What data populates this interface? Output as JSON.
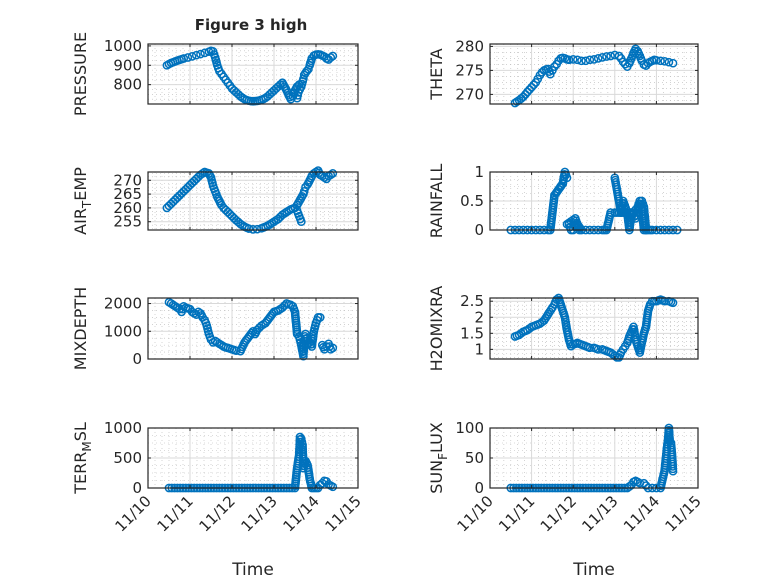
{
  "chart_data": {
    "type": "scatter",
    "title": "Figure 3 high",
    "marker": "open-circle",
    "color": "#0072BD",
    "x_tick_labels": [
      "11/10",
      "11/11",
      "11/12",
      "11/13",
      "11/14",
      "11/15"
    ],
    "x_range_days": [
      0,
      5
    ],
    "xlabel": "Time",
    "subplots": [
      {
        "id": "pressure",
        "ylabel": "PRESSURE",
        "ylabel_sub": "",
        "ylim": [
          700,
          1010
        ],
        "yticks": [
          800,
          900,
          1000
        ],
        "ytick_labels": [
          "800",
          "900",
          "1000"
        ],
        "minor_grid": true,
        "show_x_ticklabels": false,
        "x": [
          0.45,
          0.55,
          0.65,
          0.75,
          0.85,
          0.95,
          1.05,
          1.15,
          1.25,
          1.35,
          1.45,
          1.5,
          1.55,
          1.6,
          1.65,
          1.7,
          1.75,
          1.8,
          1.85,
          1.9,
          1.95,
          2.0,
          2.05,
          2.1,
          2.15,
          2.2,
          2.25,
          2.3,
          2.35,
          2.4,
          2.45,
          2.5,
          2.55,
          2.6,
          2.65,
          2.7,
          2.75,
          2.8,
          2.85,
          2.9,
          2.95,
          3.0,
          3.05,
          3.1,
          3.15,
          3.2,
          3.25,
          3.3,
          3.35,
          3.4,
          3.45,
          3.5,
          3.55,
          3.6,
          3.55,
          3.58,
          3.65,
          3.7,
          3.72,
          3.75,
          3.78,
          3.82,
          3.85,
          3.9,
          3.95,
          4.0,
          4.05,
          4.1,
          4.15,
          4.2,
          4.25,
          4.3,
          4.35,
          4.4
        ],
        "y": [
          900,
          912,
          920,
          928,
          935,
          940,
          946,
          952,
          958,
          964,
          970,
          975,
          972,
          940,
          900,
          870,
          855,
          840,
          825,
          810,
          795,
          780,
          770,
          760,
          750,
          740,
          732,
          725,
          720,
          717,
          715,
          714,
          715,
          716,
          718,
          722,
          726,
          732,
          740,
          750,
          760,
          770,
          780,
          790,
          800,
          810,
          790,
          770,
          745,
          725,
          740,
          770,
          790,
          800,
          730,
          760,
          790,
          830,
          850,
          860,
          870,
          880,
          900,
          935,
          950,
          955,
          957,
          955,
          950,
          945,
          935,
          930,
          940,
          948
        ]
      },
      {
        "id": "theta",
        "ylabel": "THETA",
        "ylabel_sub": "",
        "ylim": [
          268,
          280.5
        ],
        "yticks": [
          270,
          275,
          280
        ],
        "ytick_labels": [
          "270",
          "275",
          "280"
        ],
        "minor_grid": true,
        "show_x_ticklabels": false,
        "x": [
          0.6,
          0.7,
          0.8,
          0.9,
          1.0,
          1.1,
          1.15,
          1.2,
          1.25,
          1.3,
          1.35,
          1.4,
          1.45,
          1.5,
          1.55,
          1.6,
          1.65,
          1.7,
          1.75,
          1.8,
          1.85,
          1.9,
          2.0,
          2.1,
          2.2,
          2.3,
          2.4,
          2.5,
          2.6,
          2.7,
          2.8,
          2.9,
          3.0,
          3.1,
          3.15,
          3.2,
          3.25,
          3.3,
          3.35,
          3.4,
          3.45,
          3.5,
          3.55,
          3.6,
          3.65,
          3.7,
          3.75,
          3.8,
          3.85,
          3.9,
          3.95,
          4.0,
          4.1,
          4.2,
          4.3,
          4.4
        ],
        "y": [
          268.2,
          268.8,
          269.5,
          270.5,
          271.5,
          272.5,
          273.2,
          274,
          274.6,
          275,
          275.2,
          275.3,
          274.2,
          275,
          275.8,
          276.3,
          277,
          277.5,
          277.6,
          277.5,
          277.3,
          277.2,
          277.3,
          277.2,
          277,
          277,
          277.2,
          277.3,
          277.5,
          277.7,
          277.9,
          278,
          278.2,
          278,
          277.5,
          276.8,
          276.3,
          275.8,
          276.5,
          277.5,
          278.6,
          279.5,
          279,
          278,
          277,
          276.2,
          276,
          276.5,
          276.8,
          277,
          277.2,
          277.1,
          277,
          276.9,
          276.7,
          276.5
        ]
      },
      {
        "id": "air_temp",
        "ylabel": "AIR",
        "ylabel_sub": "T",
        "ylabel_after": "EMP",
        "ylim": [
          252,
          273
        ],
        "yticks": [
          255,
          260,
          265,
          270
        ],
        "ytick_labels": [
          "255",
          "260",
          "265",
          "270"
        ],
        "minor_grid": true,
        "show_x_ticklabels": false,
        "x": [
          0.45,
          0.55,
          0.65,
          0.75,
          0.85,
          0.95,
          1.05,
          1.15,
          1.25,
          1.35,
          1.45,
          1.5,
          1.55,
          1.6,
          1.65,
          1.7,
          1.75,
          1.8,
          1.9,
          2.0,
          2.1,
          2.2,
          2.3,
          2.4,
          2.5,
          2.6,
          2.7,
          2.8,
          2.9,
          3.0,
          3.1,
          3.2,
          3.3,
          3.4,
          3.5,
          3.55,
          3.6,
          3.65,
          3.55,
          3.7,
          3.72,
          3.75,
          3.8,
          3.85,
          3.9,
          3.95,
          4.0,
          4.05,
          4.1,
          4.15,
          4.2,
          4.25,
          4.3,
          4.35,
          4.4
        ],
        "y": [
          260,
          261.5,
          263,
          264.5,
          266,
          267.5,
          269,
          270.5,
          272,
          273,
          272.5,
          271,
          268,
          266,
          264,
          262.5,
          261,
          260,
          258.5,
          257,
          255.5,
          254.2,
          253.2,
          252.5,
          252.2,
          252.3,
          252.6,
          253.2,
          254,
          255,
          256,
          257.5,
          258.5,
          259.5,
          260,
          259,
          257,
          255,
          261,
          265,
          266,
          267.5,
          268.5,
          270,
          271.5,
          272.5,
          273,
          273.5,
          272,
          271.5,
          271,
          270.5,
          271.5,
          272,
          272.5
        ]
      },
      {
        "id": "rainfall",
        "ylabel": "RAINFALL",
        "ylabel_sub": "",
        "ylim": [
          0,
          1
        ],
        "yticks": [
          0,
          0.5,
          1
        ],
        "ytick_labels": [
          "0",
          "0.5",
          "1"
        ],
        "minor_grid": true,
        "show_x_ticklabels": false,
        "x": [
          0.5,
          0.6,
          0.7,
          0.8,
          0.9,
          1.0,
          1.1,
          1.2,
          1.3,
          1.4,
          1.45,
          1.5,
          1.55,
          1.6,
          1.65,
          1.7,
          1.75,
          1.8,
          1.85,
          1.9,
          1.95,
          2.0,
          2.05,
          2.1,
          2.2,
          2.3,
          2.4,
          2.5,
          2.6,
          2.7,
          2.75,
          2.8,
          2.9,
          3.0,
          3.05,
          3.1,
          3.15,
          3.2,
          3.25,
          3.3,
          3.35,
          3.4,
          3.45,
          3.5,
          3.55,
          3.6,
          3.65,
          3.7,
          3.75,
          3.8,
          3.85,
          3.9,
          4.0,
          4.1,
          4.2,
          4.3,
          4.4,
          4.5,
          1.55,
          1.65,
          1.75,
          1.85,
          1.95,
          2.05,
          2.15,
          3.0,
          3.05,
          3.1,
          3.15,
          3.2,
          3.3,
          3.35,
          3.4,
          3.5,
          3.55,
          3.6,
          3.65,
          3.7,
          3.75
        ],
        "y": [
          0,
          0,
          0,
          0,
          0,
          0,
          0,
          0,
          0,
          0,
          0,
          0.3,
          0.6,
          0.65,
          0.7,
          0.75,
          0.8,
          1.0,
          0.9,
          0.1,
          0,
          0,
          0.05,
          0.1,
          0,
          0,
          0,
          0,
          0,
          0,
          0,
          0,
          0.3,
          0.3,
          0.3,
          0.3,
          0.3,
          0.3,
          0.3,
          0.3,
          0.3,
          0.3,
          0.3,
          0.35,
          0.4,
          0.5,
          0.4,
          0,
          0,
          0,
          0,
          0,
          0,
          0,
          0,
          0,
          0,
          0,
          0.6,
          0.7,
          0.8,
          0.1,
          0.15,
          0.2,
          0,
          0.9,
          0.7,
          0.5,
          0.3,
          0.5,
          0.3,
          0,
          0.3,
          0.2,
          0.3,
          0.45,
          0.5,
          0.4,
          0
        ]
      },
      {
        "id": "mixdepth",
        "ylabel": "MIXDEPTH",
        "ylabel_sub": "",
        "ylim": [
          0,
          2200
        ],
        "yticks": [
          0,
          1000,
          2000
        ],
        "ytick_labels": [
          "0",
          "1000",
          "2000"
        ],
        "minor_grid": true,
        "show_x_ticklabels": false,
        "x": [
          0.5,
          0.55,
          0.6,
          0.65,
          0.7,
          0.75,
          0.8,
          0.85,
          0.9,
          1.0,
          1.05,
          1.1,
          1.15,
          1.2,
          1.25,
          1.3,
          1.35,
          1.4,
          1.45,
          1.5,
          1.55,
          1.6,
          1.65,
          1.7,
          1.75,
          1.8,
          1.85,
          1.9,
          2.0,
          2.1,
          2.2,
          2.3,
          2.4,
          2.5,
          2.55,
          2.6,
          2.7,
          2.8,
          2.9,
          3.0,
          3.1,
          3.15,
          3.2,
          3.3,
          3.4,
          3.45,
          3.5,
          3.55,
          3.6,
          3.65,
          3.7,
          3.72,
          3.75,
          3.78,
          3.8,
          3.85,
          3.9,
          3.95,
          4.0,
          4.05,
          4.1,
          4.15,
          4.2,
          4.25,
          4.3,
          4.35,
          4.4
        ],
        "y": [
          2050,
          2000,
          1950,
          1900,
          1850,
          1800,
          1700,
          1900,
          1850,
          1800,
          1700,
          1650,
          1600,
          1700,
          1650,
          1500,
          1400,
          1200,
          900,
          700,
          600,
          650,
          600,
          550,
          500,
          450,
          420,
          400,
          350,
          300,
          280,
          600,
          800,
          1000,
          900,
          1050,
          1200,
          1300,
          1500,
          1700,
          1750,
          1800,
          1850,
          2000,
          1950,
          1900,
          1700,
          900,
          800,
          500,
          100,
          650,
          900,
          750,
          550,
          600,
          450,
          1000,
          1300,
          1500,
          1500,
          500,
          350,
          450,
          550,
          350,
          400
        ]
      },
      {
        "id": "h2omixra",
        "ylabel": "H2OMIXRA",
        "ylabel_sub": "",
        "ylim": [
          0.7,
          2.6
        ],
        "yticks": [
          1,
          1.5,
          2,
          2.5
        ],
        "ytick_labels": [
          "1",
          "1.5",
          "2",
          "2.5"
        ],
        "minor_grid": true,
        "show_x_ticklabels": false,
        "x": [
          0.6,
          0.7,
          0.8,
          0.9,
          1.0,
          1.1,
          1.2,
          1.3,
          1.4,
          1.5,
          1.55,
          1.6,
          1.65,
          1.7,
          1.75,
          1.8,
          1.85,
          1.9,
          1.95,
          2.0,
          2.1,
          2.2,
          2.3,
          2.4,
          2.5,
          2.6,
          2.7,
          2.8,
          2.9,
          3.0,
          3.05,
          3.1,
          3.15,
          3.2,
          3.25,
          3.3,
          3.35,
          3.4,
          3.45,
          3.5,
          3.55,
          3.6,
          3.65,
          3.7,
          3.75,
          3.8,
          3.85,
          3.9,
          3.95,
          4.0,
          4.1,
          4.2,
          4.3,
          4.4
        ],
        "y": [
          1.4,
          1.45,
          1.55,
          1.6,
          1.7,
          1.75,
          1.8,
          1.9,
          2.1,
          2.3,
          2.4,
          2.55,
          2.6,
          2.4,
          2.2,
          2.0,
          1.6,
          1.3,
          1.1,
          1.15,
          1.2,
          1.15,
          1.1,
          1.05,
          1.05,
          1.0,
          1.0,
          0.95,
          0.9,
          0.8,
          0.75,
          0.75,
          0.9,
          1.0,
          1.1,
          1.2,
          1.4,
          1.55,
          1.7,
          1.3,
          1.1,
          0.9,
          1.2,
          1.5,
          1.7,
          2.2,
          2.4,
          2.5,
          2.5,
          2.5,
          2.55,
          2.5,
          2.5,
          2.45
        ]
      },
      {
        "id": "terr_msl",
        "ylabel": "TERR",
        "ylabel_sub": "M",
        "ylabel_after": "SL",
        "ylim": [
          0,
          1000
        ],
        "yticks": [
          0,
          500,
          1000
        ],
        "ytick_labels": [
          "0",
          "500",
          "1000"
        ],
        "minor_grid": true,
        "show_x_ticklabels": true,
        "x": [
          0.5,
          0.7,
          0.9,
          1.1,
          1.3,
          1.5,
          1.7,
          1.9,
          2.1,
          2.3,
          2.5,
          2.7,
          2.9,
          3.1,
          3.3,
          3.5,
          3.55,
          3.6,
          3.62,
          3.65,
          3.68,
          3.7,
          3.75,
          3.8,
          3.82,
          3.85,
          3.9,
          3.95,
          4.0,
          4.05,
          4.1,
          4.15,
          4.2,
          4.25,
          4.3,
          4.35,
          4.4
        ],
        "y": [
          0,
          0,
          0,
          0,
          0,
          0,
          0,
          0,
          0,
          0,
          0,
          0,
          0,
          0,
          0,
          0,
          330,
          560,
          850,
          820,
          720,
          330,
          450,
          380,
          300,
          150,
          0,
          0,
          0,
          0,
          50,
          80,
          120,
          110,
          60,
          40,
          20
        ]
      },
      {
        "id": "sun_flux",
        "ylabel": "SUN",
        "ylabel_sub": "F",
        "ylabel_after": "LUX",
        "ylim": [
          0,
          100
        ],
        "yticks": [
          0,
          50,
          100
        ],
        "ytick_labels": [
          "0",
          "50",
          "100"
        ],
        "minor_grid": true,
        "show_x_ticklabels": true,
        "x": [
          0.5,
          0.7,
          0.9,
          1.1,
          1.3,
          1.5,
          1.7,
          1.9,
          2.1,
          2.3,
          2.5,
          2.7,
          2.9,
          3.1,
          3.3,
          3.4,
          3.45,
          3.5,
          3.55,
          3.6,
          3.7,
          3.8,
          3.9,
          4.0,
          4.1,
          4.15,
          4.2,
          4.22,
          4.25,
          4.28,
          4.3,
          4.32,
          4.35,
          4.38,
          4.4
        ],
        "y": [
          0,
          0,
          0,
          0,
          0,
          0,
          0,
          0,
          0,
          0,
          0,
          0,
          0,
          0,
          0,
          5,
          10,
          12,
          10,
          8,
          8,
          0,
          0,
          0,
          0,
          15,
          30,
          45,
          65,
          80,
          100,
          78,
          75,
          52,
          28
        ]
      }
    ]
  }
}
